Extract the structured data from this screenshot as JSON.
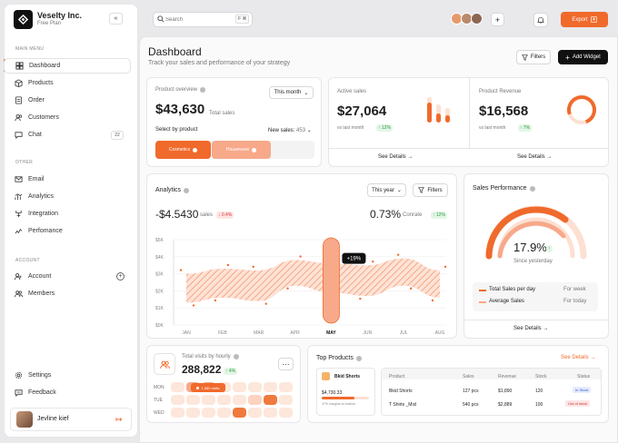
{
  "brand": {
    "name": "Veselty Inc.",
    "plan": "Free Plan"
  },
  "sidebar": {
    "main_menu": "MAIN MENU",
    "other": "OTHER",
    "account_section": "ACCOUNT",
    "main": [
      {
        "label": "Dashboard",
        "icon": "dashboard-icon"
      },
      {
        "label": "Products",
        "icon": "box-icon"
      },
      {
        "label": "Order",
        "icon": "order-icon"
      },
      {
        "label": "Customers",
        "icon": "users-icon"
      },
      {
        "label": "Chat",
        "icon": "chat-icon",
        "badge": "22"
      }
    ],
    "other_items": [
      {
        "label": "Email",
        "icon": "mail-icon"
      },
      {
        "label": "Analytics",
        "icon": "analytics-icon"
      },
      {
        "label": "Integration",
        "icon": "integration-icon"
      },
      {
        "label": "Perfomance",
        "icon": "performance-icon"
      }
    ],
    "account_items": [
      {
        "label": "Account",
        "icon": "account-icon"
      },
      {
        "label": "Members",
        "icon": "members-icon"
      }
    ],
    "settings": "Settings",
    "feedback": "Feedback",
    "user": "Jevline kief"
  },
  "topbar": {
    "search_placeholder": "Search",
    "shortcut": "F ⌘",
    "export": "Export"
  },
  "header": {
    "title": "Dashboard",
    "subtitle": "Track your sales and performance of your strategy",
    "filters": "Filters",
    "add_widget": "Add Widget"
  },
  "overview": {
    "title": "Product overview",
    "period": "This month",
    "amount": "$43,630",
    "amount_label": "Total sales",
    "select_label": "Select by product",
    "new_sales_label": "New sales:",
    "new_sales_value": "453",
    "tag1": "Cosmetics",
    "tag2": "Houseware"
  },
  "active_sales": {
    "title": "Active sales",
    "value": "$27,064",
    "compare": "vs last month",
    "change": "↑ 12%",
    "details": "See Details"
  },
  "revenue": {
    "title": "Product Revenue",
    "value": "$16,568",
    "compare": "vs last month",
    "change": "↑ 7%",
    "details": "See Details"
  },
  "analytics": {
    "title": "Analytics",
    "period": "This year",
    "filters": "Filters",
    "value1": "-$4.5430",
    "label1": "sales",
    "change1": "↓ 0.4%",
    "value2": "0.73%",
    "label2": "Conrate",
    "change2": "↑ 12%",
    "tooltip": "+19%"
  },
  "chart_data": {
    "type": "area",
    "categories": [
      "JAN",
      "FEB",
      "MAR",
      "APR",
      "MAY",
      "JUN",
      "JUL",
      "AUG"
    ],
    "yticks": [
      "$0K",
      "$1K",
      "$2K",
      "$3K",
      "$4K",
      "$5K"
    ],
    "ylim": [
      0,
      5
    ],
    "upper": [
      3.0,
      3.3,
      3.2,
      3.8,
      3.6,
      3.5,
      3.9,
      3.2
    ],
    "lower": [
      1.3,
      1.6,
      1.4,
      2.3,
      1.9,
      1.7,
      2.3,
      1.6
    ],
    "highlight": "MAY",
    "highlight_label": "+19%"
  },
  "performance": {
    "title": "Sales Performance",
    "value": "17.9%",
    "label": "Since yesterday",
    "legend1": "Total Sales per day",
    "legend1_right": "For week",
    "legend2": "Average Sales",
    "legend2_right": "For today",
    "details": "See Details"
  },
  "visits": {
    "title": "Total visits by hourly",
    "value": "288,822",
    "change": "↑ 4%",
    "days": [
      "MON",
      "TUE",
      "WED"
    ],
    "tooltip": "1,560 visits"
  },
  "top_products": {
    "title": "Top Products",
    "see_details": "See Details",
    "featured": "Bkid Shorts",
    "featured_price": "$4,730.33",
    "featured_note": "37% margins on bottom",
    "columns": [
      "Product",
      "Sales",
      "Revenue",
      "Stock",
      "Status"
    ],
    "rows": [
      {
        "product": "Bkid Shorts",
        "sales": "127 pcs",
        "revenue": "$1,890",
        "stock": "120",
        "status": "In Stock"
      },
      {
        "product": "T Shirts _Mixl",
        "sales": "540 pcs",
        "revenue": "$2,889",
        "stock": "100",
        "status": "Out of stock"
      }
    ]
  }
}
